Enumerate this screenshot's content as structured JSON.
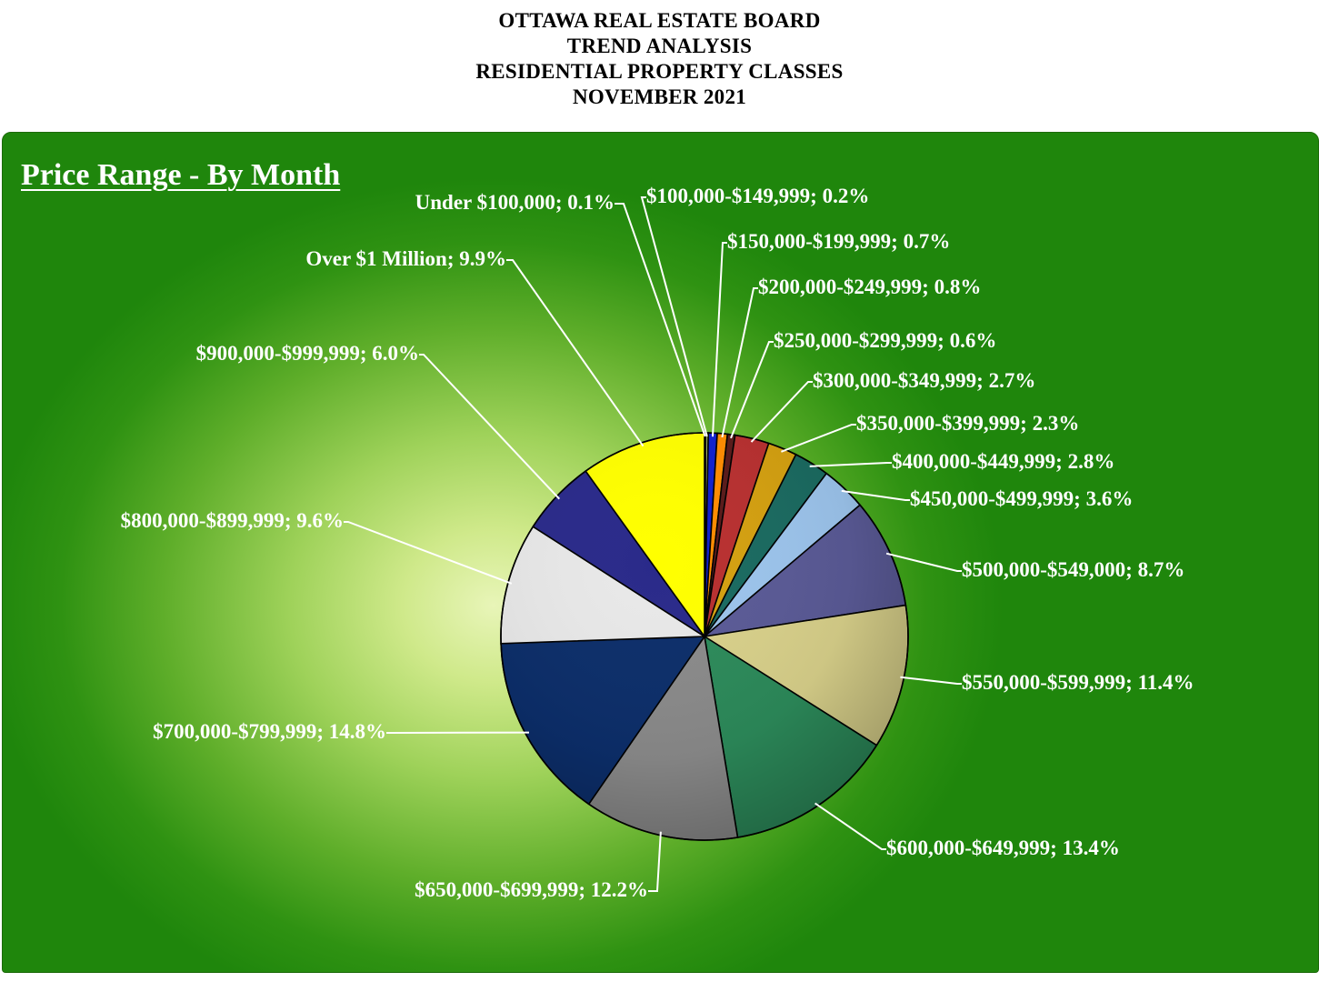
{
  "header": {
    "line1": "OTTAWA REAL ESTATE BOARD",
    "line2": "TREND ANALYSIS",
    "line3": "RESIDENTIAL PROPERTY CLASSES",
    "line4": "NOVEMBER 2021"
  },
  "panel": {
    "title": "Price Range - By Month"
  },
  "chart_data": {
    "type": "pie",
    "title": "Price Range - By Month",
    "legend": "none (callout labels)",
    "slices": [
      {
        "label": "Under $100,000; 0.1%",
        "category": "Under $100,000",
        "value": 0.1,
        "color": "#3a6a1c"
      },
      {
        "label": "$100,000-$149,999; 0.2%",
        "category": "$100,000-$149,999",
        "value": 0.2,
        "color": "#b8d070"
      },
      {
        "label": "$150,000-$199,999; 0.7%",
        "category": "$150,000-$199,999",
        "value": 0.7,
        "color": "#1020d0"
      },
      {
        "label": "$200,000-$249,999; 0.8%",
        "category": "$200,000-$249,999",
        "value": 0.8,
        "color": "#ff8c00"
      },
      {
        "label": "$250,000-$299,999; 0.6%",
        "category": "$250,000-$299,999",
        "value": 0.6,
        "color": "#5a1a1a"
      },
      {
        "label": "$300,000-$349,999; 2.7%",
        "category": "$300,000-$349,999",
        "value": 2.7,
        "color": "#b83030"
      },
      {
        "label": "$350,000-$399,999; 2.3%",
        "category": "$350,000-$399,999",
        "value": 2.3,
        "color": "#d4a010"
      },
      {
        "label": "$400,000-$449,999; 2.8%",
        "category": "$400,000-$449,999",
        "value": 2.8,
        "color": "#1a6a60"
      },
      {
        "label": "$450,000-$499,999; 3.6%",
        "category": "$450,000-$499,999",
        "value": 3.6,
        "color": "#9cc4ec"
      },
      {
        "label": "$500,000-$549,000; 8.7%",
        "category": "$500,000-$549,000",
        "value": 8.7,
        "color": "#5a5a96"
      },
      {
        "label": "$550,000-$599,999; 11.4%",
        "category": "$550,000-$599,999",
        "value": 11.4,
        "color": "#d8d08a"
      },
      {
        "label": "$600,000-$649,999; 13.4%",
        "category": "$600,000-$649,999",
        "value": 13.4,
        "color": "#2c8a5a"
      },
      {
        "label": "$650,000-$699,999; 12.2%",
        "category": "$650,000-$699,999",
        "value": 12.2,
        "color": "#8a8a8a"
      },
      {
        "label": "$700,000-$799,999; 14.8%",
        "category": "$700,000-$799,999",
        "value": 14.8,
        "color": "#0c2e6a"
      },
      {
        "label": "$800,000-$899,999; 9.6%",
        "category": "$800,000-$899,999",
        "value": 9.6,
        "color": "#e8e8e8"
      },
      {
        "label": "$900,000-$999,999; 6.0%",
        "category": "$900,000-$999,999",
        "value": 6.0,
        "color": "#2a2a8a"
      },
      {
        "label": "Over $1 Million; 9.9%",
        "category": "Over $1 Million",
        "value": 9.9,
        "color": "#ffff00"
      }
    ]
  }
}
